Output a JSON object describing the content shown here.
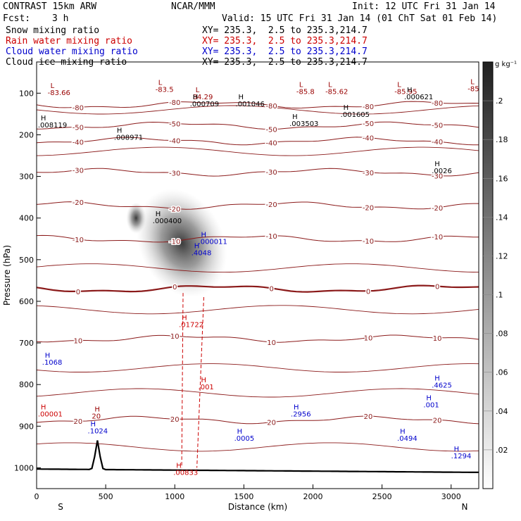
{
  "header": {
    "model": "CONTRAST 15km ARW",
    "center": "NCAR/MMM",
    "init": "Init: 12 UTC Fri 31 Jan 14",
    "fcst_label": "Fcst:",
    "fcst_value": "3 h",
    "valid": "Valid: 15 UTC Fri 31 Jan 14 (01 ChT Sat 01 Feb 14)"
  },
  "legend": [
    {
      "name": "Snow mixing ratio",
      "color": "#000000",
      "xy": "XY= 235.3,  2.5 to 235.3,214.7"
    },
    {
      "name": "Rain water mixing ratio",
      "color": "#cc0000",
      "xy": "XY= 235.3,  2.5 to 235.3,214.7"
    },
    {
      "name": "Cloud water mixing ratio",
      "color": "#0000cc",
      "xy": "XY= 235.3,  2.5 to 235.3,214.7"
    },
    {
      "name": "Cloud ice mixing ratio",
      "color": "#000000",
      "xy": "XY= 235.3,  2.5 to 235.3,214.7"
    }
  ],
  "chart_data": {
    "type": "cross-section",
    "xlabel": "Distance (km)",
    "ylabel": "Pressure (hPa)",
    "xlim": [
      0,
      3200
    ],
    "ylim": [
      1050,
      25
    ],
    "x_ticks": [
      0,
      500,
      1000,
      1500,
      2000,
      2500,
      3000
    ],
    "y_ticks": [
      100,
      200,
      300,
      400,
      500,
      600,
      700,
      800,
      900,
      1000
    ],
    "x_end_labels": {
      "left": "S",
      "right": "N"
    },
    "colorbar": {
      "unit": "g kg⁻¹",
      "ticks": [
        ".2",
        ".18",
        ".16",
        ".14",
        ".12",
        ".1",
        ".08",
        ".06",
        ".04",
        ".02"
      ],
      "tick_values": [
        0.2,
        0.18,
        0.16,
        0.14,
        0.12,
        0.1,
        0.08,
        0.06,
        0.04,
        0.02
      ],
      "range": [
        0,
        0.22
      ]
    },
    "temperature_contours": [
      {
        "label": "-80",
        "p": 128
      },
      {
        "label": "-50",
        "p": 178
      },
      {
        "label": "-40",
        "p": 215
      },
      {
        "label": "-30",
        "p": 290
      },
      {
        "label": "-20",
        "p": 370
      },
      {
        "label": "-10",
        "p": 450
      },
      {
        "label": "0",
        "p": 570
      },
      {
        "label": "10",
        "p": 690
      },
      {
        "label": "20",
        "p": 885
      }
    ],
    "annotations": [
      {
        "marker": "L",
        "value": "-83.66",
        "x": 100,
        "p": 88,
        "color": "#990000"
      },
      {
        "marker": "L",
        "value": "-83.5",
        "x": 880,
        "p": 80,
        "color": "#990000"
      },
      {
        "marker": "L",
        "value": "84.29",
        "x": 1150,
        "p": 98,
        "color": "#990000"
      },
      {
        "marker": "L",
        "value": "-85.8",
        "x": 1900,
        "p": 85,
        "color": "#990000"
      },
      {
        "marker": "L",
        "value": "-85.62",
        "x": 2110,
        "p": 85,
        "color": "#990000"
      },
      {
        "marker": "L",
        "value": "-85.95",
        "x": 2610,
        "p": 85,
        "color": "#990000"
      },
      {
        "marker": "L",
        "value": "-85",
        "x": 3140,
        "p": 78,
        "color": "#990000"
      },
      {
        "marker": "H",
        "value": ".000709",
        "x": 1130,
        "p": 115,
        "color": "#000000"
      },
      {
        "marker": "H",
        "value": ".001046",
        "x": 1460,
        "p": 115,
        "color": "#000000"
      },
      {
        "marker": "H",
        "value": ".003503",
        "x": 1850,
        "p": 162,
        "color": "#000000"
      },
      {
        "marker": "H",
        "value": ".001605",
        "x": 2220,
        "p": 140,
        "color": "#000000"
      },
      {
        "marker": "H",
        "value": ".000621",
        "x": 2680,
        "p": 98,
        "color": "#000000"
      },
      {
        "marker": "H",
        "value": ".008119",
        "x": 30,
        "p": 165,
        "color": "#000000"
      },
      {
        "marker": "H",
        "value": ".008971",
        "x": 580,
        "p": 195,
        "color": "#000000"
      },
      {
        "marker": "H",
        "value": ".0026",
        "x": 2880,
        "p": 275,
        "color": "#000000"
      },
      {
        "marker": "H",
        "value": ".000400",
        "x": 860,
        "p": 395,
        "color": "#000000"
      },
      {
        "marker": "H",
        "value": ".000011",
        "x": 1190,
        "p": 445,
        "color": "#0000cc"
      },
      {
        "marker": "H",
        "value": ".4048",
        "x": 1140,
        "p": 472,
        "color": "#0000cc"
      },
      {
        "marker": "H",
        "value": ".01722",
        "x": 1050,
        "p": 645,
        "color": "#cc0000"
      },
      {
        "marker": "H",
        "value": ".1068",
        "x": 60,
        "p": 735,
        "color": "#0000cc"
      },
      {
        "marker": "H",
        "value": ".001",
        "x": 1190,
        "p": 795,
        "color": "#cc0000"
      },
      {
        "marker": "H",
        "value": ".00001",
        "x": 30,
        "p": 860,
        "color": "#cc0000"
      },
      {
        "marker": "H",
        "value": "20",
        "x": 420,
        "p": 865,
        "color": "#990000"
      },
      {
        "marker": "H",
        "value": ".1024",
        "x": 390,
        "p": 900,
        "color": "#0000cc"
      },
      {
        "marker": "H",
        "value": ".2956",
        "x": 1860,
        "p": 860,
        "color": "#0000cc"
      },
      {
        "marker": "H",
        "value": ".0005",
        "x": 1450,
        "p": 918,
        "color": "#0000cc"
      },
      {
        "marker": "H",
        "value": ".0494",
        "x": 2630,
        "p": 918,
        "color": "#0000cc"
      },
      {
        "marker": "H",
        "value": ".4625",
        "x": 2880,
        "p": 790,
        "color": "#0000cc"
      },
      {
        "marker": "H",
        "value": ".001",
        "x": 2820,
        "p": 838,
        "color": "#0000cc"
      },
      {
        "marker": "H",
        "value": ".1294",
        "x": 3020,
        "p": 960,
        "color": "#0000cc"
      },
      {
        "marker": "H",
        "value": ".00833",
        "x": 1010,
        "p": 1000,
        "color": "#cc0000"
      }
    ]
  }
}
